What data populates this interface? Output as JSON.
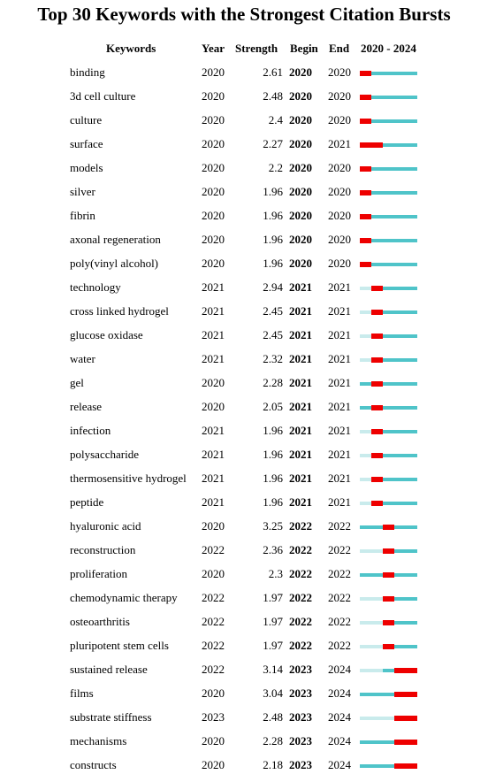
{
  "chart_data": {
    "type": "table",
    "title": "Top 30 Keywords with the Strongest Citation Bursts",
    "columns": [
      "Keywords",
      "Year",
      "Strength",
      "Begin",
      "End",
      "2020 - 2024"
    ],
    "timeline": {
      "start": 2020,
      "end": 2024
    },
    "colors": {
      "burst": "#ee0000",
      "active": "#4fc4c9",
      "inactive": "#c9ebec"
    },
    "rows": [
      {
        "keyword": "binding",
        "year": "2020",
        "strength": "2.61",
        "begin": "2020",
        "end": "2020"
      },
      {
        "keyword": "3d cell culture",
        "year": "2020",
        "strength": "2.48",
        "begin": "2020",
        "end": "2020"
      },
      {
        "keyword": "culture",
        "year": "2020",
        "strength": "2.4",
        "begin": "2020",
        "end": "2020"
      },
      {
        "keyword": "surface",
        "year": "2020",
        "strength": "2.27",
        "begin": "2020",
        "end": "2021"
      },
      {
        "keyword": "models",
        "year": "2020",
        "strength": "2.2",
        "begin": "2020",
        "end": "2020"
      },
      {
        "keyword": "silver",
        "year": "2020",
        "strength": "1.96",
        "begin": "2020",
        "end": "2020"
      },
      {
        "keyword": "fibrin",
        "year": "2020",
        "strength": "1.96",
        "begin": "2020",
        "end": "2020"
      },
      {
        "keyword": "axonal regeneration",
        "year": "2020",
        "strength": "1.96",
        "begin": "2020",
        "end": "2020"
      },
      {
        "keyword": "poly(vinyl alcohol)",
        "year": "2020",
        "strength": "1.96",
        "begin": "2020",
        "end": "2020"
      },
      {
        "keyword": "technology",
        "year": "2021",
        "strength": "2.94",
        "begin": "2021",
        "end": "2021"
      },
      {
        "keyword": "cross linked hydrogel",
        "year": "2021",
        "strength": "2.45",
        "begin": "2021",
        "end": "2021"
      },
      {
        "keyword": "glucose oxidase",
        "year": "2021",
        "strength": "2.45",
        "begin": "2021",
        "end": "2021"
      },
      {
        "keyword": "water",
        "year": "2021",
        "strength": "2.32",
        "begin": "2021",
        "end": "2021"
      },
      {
        "keyword": "gel",
        "year": "2020",
        "strength": "2.28",
        "begin": "2021",
        "end": "2021"
      },
      {
        "keyword": "release",
        "year": "2020",
        "strength": "2.05",
        "begin": "2021",
        "end": "2021"
      },
      {
        "keyword": "infection",
        "year": "2021",
        "strength": "1.96",
        "begin": "2021",
        "end": "2021"
      },
      {
        "keyword": "polysaccharide",
        "year": "2021",
        "strength": "1.96",
        "begin": "2021",
        "end": "2021"
      },
      {
        "keyword": "thermosensitive hydrogel",
        "year": "2021",
        "strength": "1.96",
        "begin": "2021",
        "end": "2021"
      },
      {
        "keyword": "peptide",
        "year": "2021",
        "strength": "1.96",
        "begin": "2021",
        "end": "2021"
      },
      {
        "keyword": "hyaluronic acid",
        "year": "2020",
        "strength": "3.25",
        "begin": "2022",
        "end": "2022"
      },
      {
        "keyword": "reconstruction",
        "year": "2022",
        "strength": "2.36",
        "begin": "2022",
        "end": "2022"
      },
      {
        "keyword": "proliferation",
        "year": "2020",
        "strength": "2.3",
        "begin": "2022",
        "end": "2022"
      },
      {
        "keyword": "chemodynamic therapy",
        "year": "2022",
        "strength": "1.97",
        "begin": "2022",
        "end": "2022"
      },
      {
        "keyword": "osteoarthritis",
        "year": "2022",
        "strength": "1.97",
        "begin": "2022",
        "end": "2022"
      },
      {
        "keyword": "pluripotent stem cells",
        "year": "2022",
        "strength": "1.97",
        "begin": "2022",
        "end": "2022"
      },
      {
        "keyword": "sustained release",
        "year": "2022",
        "strength": "3.14",
        "begin": "2023",
        "end": "2024"
      },
      {
        "keyword": "films",
        "year": "2020",
        "strength": "3.04",
        "begin": "2023",
        "end": "2024"
      },
      {
        "keyword": "substrate stiffness",
        "year": "2023",
        "strength": "2.48",
        "begin": "2023",
        "end": "2024"
      },
      {
        "keyword": "mechanisms",
        "year": "2020",
        "strength": "2.28",
        "begin": "2023",
        "end": "2024"
      },
      {
        "keyword": "constructs",
        "year": "2020",
        "strength": "2.18",
        "begin": "2023",
        "end": "2024"
      }
    ]
  }
}
